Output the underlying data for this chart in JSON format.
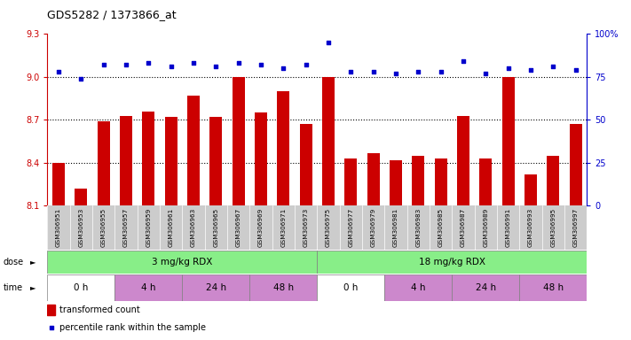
{
  "title": "GDS5282 / 1373866_at",
  "samples": [
    "GSM306951",
    "GSM306953",
    "GSM306955",
    "GSM306957",
    "GSM306959",
    "GSM306961",
    "GSM306963",
    "GSM306965",
    "GSM306967",
    "GSM306969",
    "GSM306971",
    "GSM306973",
    "GSM306975",
    "GSM306977",
    "GSM306979",
    "GSM306981",
    "GSM306983",
    "GSM306985",
    "GSM306987",
    "GSM306989",
    "GSM306991",
    "GSM306993",
    "GSM306995",
    "GSM306997"
  ],
  "bar_values": [
    8.4,
    8.22,
    8.69,
    8.73,
    8.76,
    8.72,
    8.87,
    8.72,
    9.0,
    8.75,
    8.9,
    8.67,
    9.0,
    8.43,
    8.47,
    8.42,
    8.45,
    8.43,
    8.73,
    8.43,
    9.0,
    8.32,
    8.45,
    8.67
  ],
  "dot_values": [
    78,
    74,
    82,
    82,
    83,
    81,
    83,
    81,
    83,
    82,
    80,
    82,
    95,
    78,
    78,
    77,
    78,
    78,
    84,
    77,
    80,
    79,
    81,
    79
  ],
  "ylim_left": [
    8.1,
    9.3
  ],
  "ylim_right": [
    0,
    100
  ],
  "yticks_left": [
    8.1,
    8.4,
    8.7,
    9.0,
    9.3
  ],
  "yticks_right": [
    0,
    25,
    50,
    75,
    100
  ],
  "bar_color": "#cc0000",
  "dot_color": "#0000cc",
  "tick_bg_color": "#cccccc",
  "grid_color": "#000000",
  "left_axis_color": "#cc0000",
  "right_axis_color": "#0000cc",
  "dose_row_color": "#88ee88",
  "time_color_white": "#ffffff",
  "time_color_pink": "#cc88cc",
  "legend_bar_label": "transformed count",
  "legend_dot_label": "percentile rank within the sample",
  "dose_groups": [
    {
      "label": "3 mg/kg RDX",
      "start": 0,
      "end": 12
    },
    {
      "label": "18 mg/kg RDX",
      "start": 12,
      "end": 24
    }
  ],
  "time_groups": [
    {
      "label": "0 h",
      "start": 0,
      "end": 3,
      "alt": 0
    },
    {
      "label": "4 h",
      "start": 3,
      "end": 6,
      "alt": 1
    },
    {
      "label": "24 h",
      "start": 6,
      "end": 9,
      "alt": 1
    },
    {
      "label": "48 h",
      "start": 9,
      "end": 12,
      "alt": 1
    },
    {
      "label": "0 h",
      "start": 12,
      "end": 15,
      "alt": 0
    },
    {
      "label": "4 h",
      "start": 15,
      "end": 18,
      "alt": 1
    },
    {
      "label": "24 h",
      "start": 18,
      "end": 21,
      "alt": 1
    },
    {
      "label": "48 h",
      "start": 21,
      "end": 24,
      "alt": 1
    }
  ]
}
